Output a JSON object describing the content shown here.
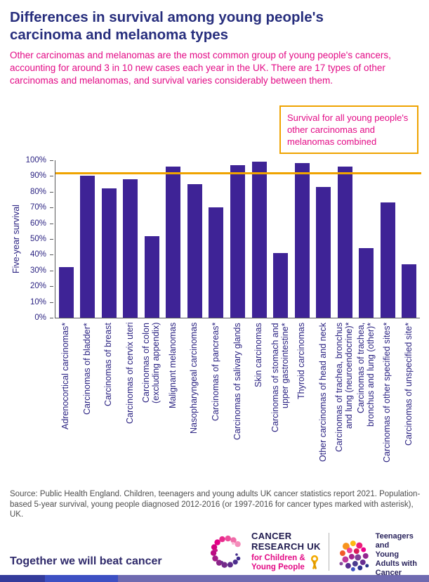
{
  "colors": {
    "navy": "#272e7d",
    "magenta": "#e30b86",
    "bar": "#3e2396",
    "orange": "#efa300",
    "axis-text": "#2b2382",
    "axis-line": "#58595b",
    "source-gray": "#4d4d4d",
    "tagline": "#2f2a6b",
    "cruk-navy": "#1f1a4e",
    "tya-navy": "#29235c",
    "strip1": "#343b9b",
    "strip2": "#3d50c3",
    "strip3": "#6f6ab0"
  },
  "title": "Differences in survival among young people's carcinoma and melanoma types",
  "intro": "Other carcinomas and melanomas are the most common group of young people's cancers, accounting for around 3 in 10 new cases each year in the UK. There are 17 types of other carcinomas and melanomas, and survival varies considerably between them.",
  "chart_data": {
    "type": "bar",
    "title": "Differences in survival among young people's carcinoma and melanoma types",
    "ylabel": "Five-year survival",
    "xlabel": "",
    "ylim": [
      0,
      100
    ],
    "ytick_step": 10,
    "ytick_suffix": "%",
    "grid": false,
    "legend_position": "none",
    "bar_color_name": "purple",
    "categories": [
      "Adrenocortical carcinomas*",
      "Carcinomas of bladder*",
      "Carcinomas of breast",
      "Carcinomas of cervix uteri",
      "Carcinomas of colon\n(excluding appendix)",
      "Malignant melanomas",
      "Nasopharyngeal carcinomas",
      "Carcinomas of pancreas*",
      "Carcinomas of salivary glands",
      "Skin carcinomas",
      "Carcinomas of stomach and\nupper gastrointestine*",
      "Thyroid carcinomas",
      "Other carcinomas of head and neck",
      "Carcinomas of trachea, bronchus\nand lung (neuroendocrine)*",
      "Carcinomas of trachea,\nbronchus and lung (other)*",
      "Carcinomas of other specified sites*",
      "Carcinomas of unspecified site*"
    ],
    "values": [
      32,
      90,
      82,
      88,
      52,
      96,
      85,
      70,
      97,
      99,
      41,
      98,
      83,
      96,
      44,
      73,
      34
    ],
    "reference_line": {
      "value": 92,
      "label": "Survival for all young people's other carcinomas and melanomas combined"
    }
  },
  "source": "Source: Public Health England. Children, teenagers and young adults UK cancer statistics report 2021. Population-based 5-year survival, young people diagnosed 2012-2016 (or 1997-2016 for cancer types marked with asterisk), UK.",
  "footer": {
    "tagline": "Together we will beat cancer",
    "cruk_logo": {
      "icon": "cruk-dotted-c-icon",
      "line1": "CANCER",
      "line2": "RESEARCH UK",
      "line3": "for Children &",
      "line4": "Young People",
      "ribbon_icon": "gold-ribbon-icon"
    },
    "tya_logo": {
      "icon": "tya-dot-cluster-icon",
      "line1": "Teenagers and",
      "line2": "Young",
      "line3": "Adults with",
      "line4": "Cancer"
    }
  }
}
